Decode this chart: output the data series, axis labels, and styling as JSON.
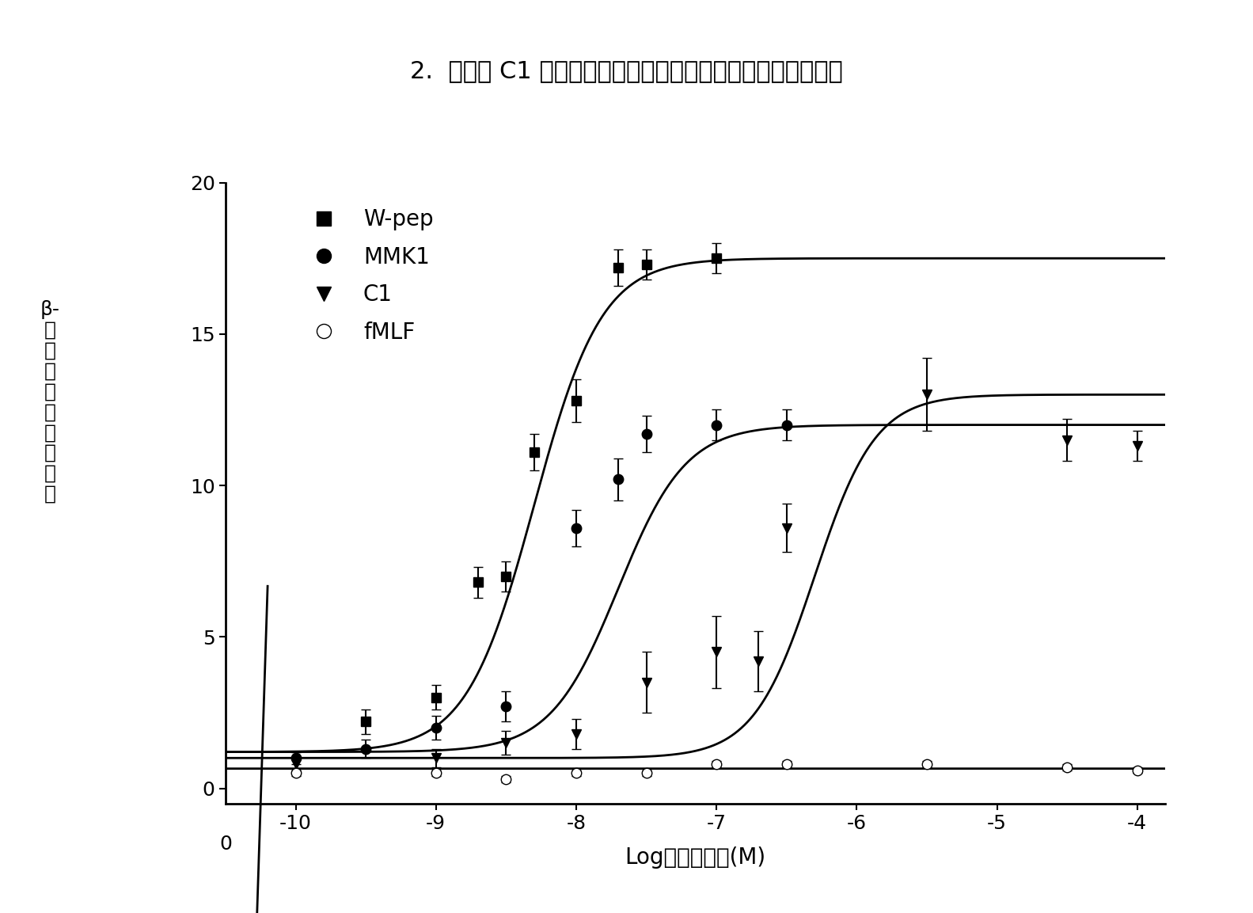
{
  "title": "2.  化合物 C1 和已知甲酰肽受体激动剂的作用强度和效应比较",
  "ylabel_chars": [
    "β-",
    "己",
    "糖",
    "苷",
    "酶",
    "释",
    "放",
    "百",
    "分",
    "比"
  ],
  "xlabel": "Log［激动剂］(M)",
  "xlim": [
    -10.5,
    -3.8
  ],
  "ylim": [
    -0.5,
    20
  ],
  "xticks": [
    -10,
    -9,
    -8,
    -7,
    -6,
    -5,
    -4
  ],
  "xtick_labels": [
    "-10",
    "-9",
    "-8",
    "-7",
    "-6",
    "-5",
    "-4"
  ],
  "yticks": [
    0,
    5,
    10,
    15,
    20
  ],
  "background_color": "#ffffff",
  "Wpep": {
    "EC50_log": -8.3,
    "Emax": 17.5,
    "Hill": 1.8,
    "baseline": 1.2,
    "x_data": [
      -11,
      -9.5,
      -9.0,
      -8.7,
      -8.5,
      -8.3,
      -8.0,
      -7.7,
      -7.5,
      -7.0
    ],
    "y_data": [
      1.2,
      2.2,
      3.0,
      6.8,
      7.0,
      11.1,
      12.8,
      17.2,
      17.3,
      17.5
    ],
    "y_err": [
      0.2,
      0.4,
      0.4,
      0.5,
      0.5,
      0.6,
      0.7,
      0.6,
      0.5,
      0.5
    ]
  },
  "MMK1": {
    "EC50_log": -7.7,
    "Emax": 12.0,
    "Hill": 1.8,
    "baseline": 1.2,
    "x_data": [
      -11,
      -10,
      -9.5,
      -9.0,
      -8.5,
      -8.0,
      -7.7,
      -7.5,
      -7.0,
      -6.5
    ],
    "y_data": [
      1.2,
      1.0,
      1.3,
      2.0,
      2.7,
      8.6,
      10.2,
      11.7,
      12.0,
      12.0
    ],
    "y_err": [
      0.2,
      0.2,
      0.3,
      0.4,
      0.5,
      0.6,
      0.7,
      0.6,
      0.5,
      0.5
    ]
  },
  "C1": {
    "EC50_log": -6.3,
    "Emax": 13.0,
    "Hill": 2.0,
    "baseline": 1.0,
    "x_data": [
      -11,
      -10,
      -9.0,
      -8.5,
      -8.0,
      -7.5,
      -7.0,
      -6.7,
      -6.5,
      -5.5,
      -4.5,
      -4.0
    ],
    "y_data": [
      1.0,
      0.8,
      1.0,
      1.5,
      1.8,
      3.5,
      4.5,
      4.2,
      8.6,
      13.0,
      11.5,
      11.3
    ],
    "y_err": [
      0.2,
      0.2,
      0.3,
      0.4,
      0.5,
      1.0,
      1.2,
      1.0,
      0.8,
      1.2,
      0.7,
      0.5
    ]
  },
  "fMLF": {
    "x_data": [
      -11,
      -10,
      -9.0,
      -8.5,
      -8.0,
      -7.5,
      -7.0,
      -6.5,
      -5.5,
      -4.5,
      -4.0
    ],
    "y_data": [
      0.5,
      0.5,
      0.5,
      0.3,
      0.5,
      0.5,
      0.8,
      0.8,
      0.8,
      0.7,
      0.6
    ],
    "y_err": [
      0.1,
      0.1,
      0.1,
      0.1,
      0.1,
      0.1,
      0.1,
      0.1,
      0.1,
      0.1,
      0.1
    ]
  }
}
